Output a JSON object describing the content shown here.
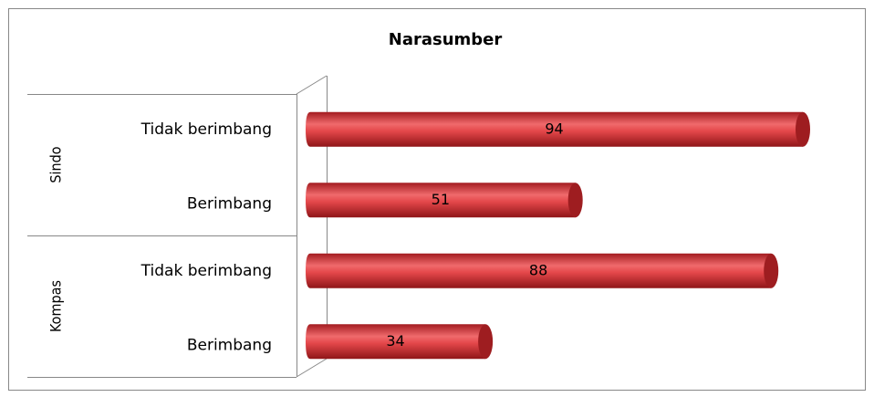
{
  "chart_data": {
    "type": "bar",
    "orientation": "horizontal",
    "title": "Narasumber",
    "groups": [
      "Sindo",
      "Kompas"
    ],
    "categories": [
      "Tidak berimbang",
      "Berimbang",
      "Tidak berimbang",
      "Berimbang"
    ],
    "values": [
      94,
      51,
      88,
      34
    ],
    "color": "#d9363a"
  }
}
